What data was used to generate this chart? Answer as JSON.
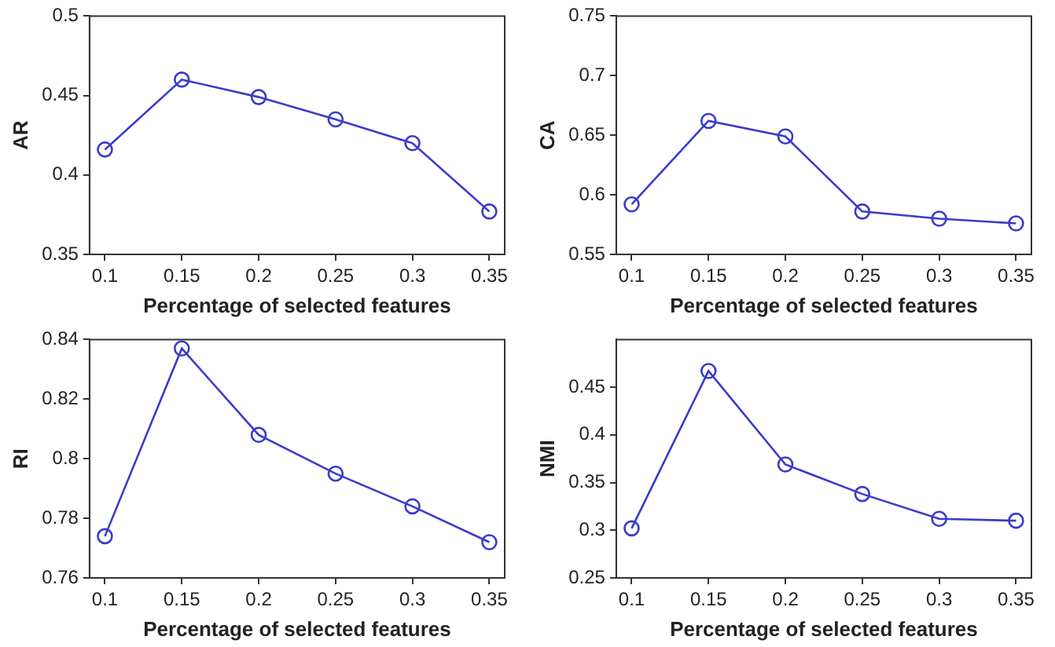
{
  "chart_data": [
    {
      "type": "line",
      "xlabel": "Percentage of selected features",
      "ylabel": "AR",
      "x": [
        0.1,
        0.15,
        0.2,
        0.25,
        0.3,
        0.35
      ],
      "xlim": [
        0.09,
        0.36
      ],
      "xticks": [
        0.1,
        0.15,
        0.2,
        0.25,
        0.3,
        0.35
      ],
      "ylim": [
        0.35,
        0.5
      ],
      "yticks": [
        0.35,
        0.4,
        0.45,
        0.5
      ],
      "marker": "circle",
      "grid": false,
      "legend": false,
      "series": [
        {
          "color": "#3a3acc",
          "values": [
            0.416,
            0.46,
            0.449,
            0.435,
            0.42,
            0.377
          ]
        }
      ]
    },
    {
      "type": "line",
      "xlabel": "Percentage of selected features",
      "ylabel": "CA",
      "x": [
        0.1,
        0.15,
        0.2,
        0.25,
        0.3,
        0.35
      ],
      "xlim": [
        0.09,
        0.36
      ],
      "xticks": [
        0.1,
        0.15,
        0.2,
        0.25,
        0.3,
        0.35
      ],
      "ylim": [
        0.55,
        0.75
      ],
      "yticks": [
        0.55,
        0.6,
        0.65,
        0.7,
        0.75
      ],
      "marker": "circle",
      "grid": false,
      "legend": false,
      "series": [
        {
          "color": "#3a3acc",
          "values": [
            0.592,
            0.662,
            0.649,
            0.586,
            0.58,
            0.576
          ]
        }
      ]
    },
    {
      "type": "line",
      "xlabel": "Percentage of selected features",
      "ylabel": "RI",
      "x": [
        0.1,
        0.15,
        0.2,
        0.25,
        0.3,
        0.35
      ],
      "xlim": [
        0.09,
        0.36
      ],
      "xticks": [
        0.1,
        0.15,
        0.2,
        0.25,
        0.3,
        0.35
      ],
      "ylim": [
        0.76,
        0.84
      ],
      "yticks": [
        0.76,
        0.78,
        0.8,
        0.82,
        0.84
      ],
      "marker": "circle",
      "grid": false,
      "legend": false,
      "series": [
        {
          "color": "#3a3acc",
          "values": [
            0.774,
            0.837,
            0.808,
            0.795,
            0.784,
            0.772
          ]
        }
      ]
    },
    {
      "type": "line",
      "xlabel": "Percentage of selected features",
      "ylabel": "NMI",
      "x": [
        0.1,
        0.15,
        0.2,
        0.25,
        0.3,
        0.35
      ],
      "xlim": [
        0.09,
        0.36
      ],
      "xticks": [
        0.1,
        0.15,
        0.2,
        0.25,
        0.3,
        0.35
      ],
      "ylim": [
        0.25,
        0.5
      ],
      "yticks": [
        0.25,
        0.3,
        0.35,
        0.4,
        0.45
      ],
      "marker": "circle",
      "grid": false,
      "legend": false,
      "series": [
        {
          "color": "#3a3acc",
          "values": [
            0.302,
            0.467,
            0.369,
            0.338,
            0.312,
            0.31
          ]
        }
      ]
    }
  ]
}
